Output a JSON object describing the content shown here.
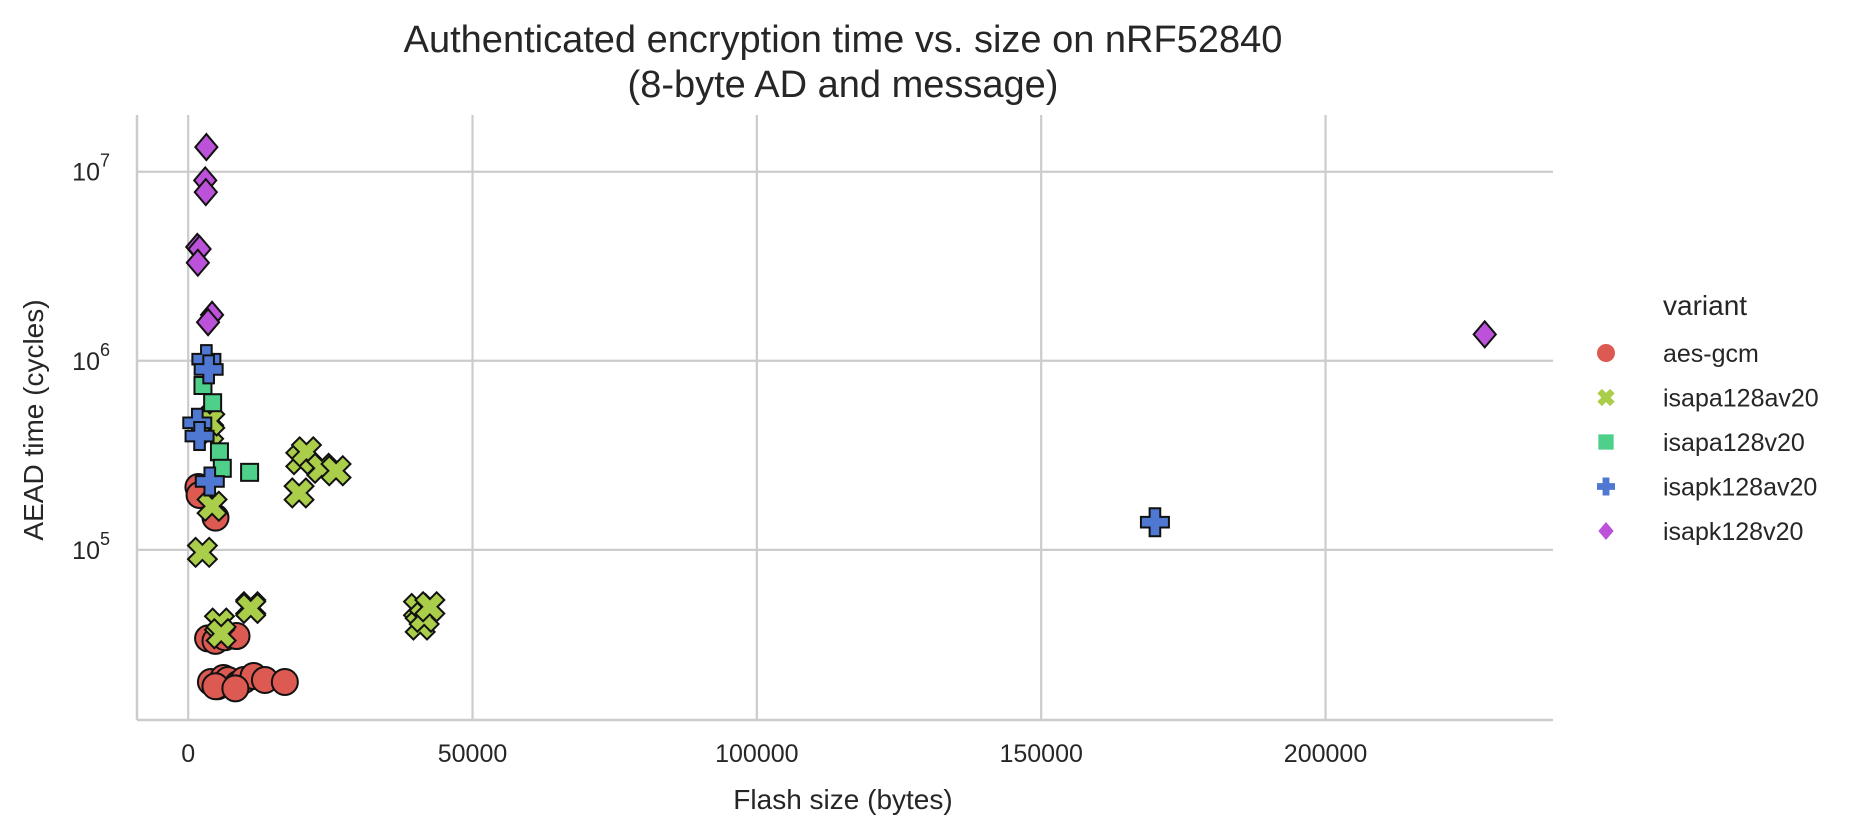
{
  "chart_data": {
    "type": "scatter",
    "title": "Authenticated encryption time vs. size on nRF52840",
    "subtitle": "(8-byte AD and message)",
    "xlabel": "Flash size (bytes)",
    "ylabel": "AEAD time (cycles)",
    "xlim": [
      -9000,
      240000
    ],
    "ylim_log10": [
      4.1,
      7.3
    ],
    "y_scale": "log",
    "grid": true,
    "x_ticks": [
      {
        "value": 0,
        "label": "0"
      },
      {
        "value": 50000,
        "label": "50000"
      },
      {
        "value": 100000,
        "label": "100000"
      },
      {
        "value": 150000,
        "label": "150000"
      },
      {
        "value": 200000,
        "label": "200000"
      }
    ],
    "y_ticks": [
      {
        "value": 100000,
        "base": "10",
        "exp": "5"
      },
      {
        "value": 1000000,
        "base": "10",
        "exp": "6"
      },
      {
        "value": 10000000,
        "base": "10",
        "exp": "7"
      }
    ],
    "legend": {
      "title": "variant",
      "placement": "right"
    },
    "series": [
      {
        "name": "aes-gcm",
        "marker": "circle",
        "color": "#dd5a52",
        "points": [
          [
            1800,
            215000
          ],
          [
            2000,
            195000
          ],
          [
            4800,
            148000
          ],
          [
            3500,
            34000
          ],
          [
            4800,
            33000
          ],
          [
            6500,
            34500
          ],
          [
            8500,
            35000
          ],
          [
            4000,
            20000
          ],
          [
            5200,
            19000
          ],
          [
            6200,
            21000
          ],
          [
            7000,
            20500
          ],
          [
            8800,
            19500
          ],
          [
            9800,
            20500
          ],
          [
            11500,
            21500
          ],
          [
            13500,
            20500
          ],
          [
            17000,
            20000
          ],
          [
            4800,
            19000
          ],
          [
            8300,
            18500
          ]
        ]
      },
      {
        "name": "isapa128av20",
        "marker": "x",
        "color": "#aacd4a",
        "points": [
          [
            2500,
            97000
          ],
          [
            4200,
            170000
          ],
          [
            3600,
            420000
          ],
          [
            3800,
            480000
          ],
          [
            5500,
            41000
          ],
          [
            5800,
            36000
          ],
          [
            11000,
            50000
          ],
          [
            11000,
            49000
          ],
          [
            19500,
            200000
          ],
          [
            19800,
            300000
          ],
          [
            20800,
            330000
          ],
          [
            23500,
            270000
          ],
          [
            26000,
            262000
          ],
          [
            40500,
            49000
          ],
          [
            40800,
            40000
          ],
          [
            41500,
            44000
          ],
          [
            42500,
            50000
          ]
        ]
      },
      {
        "name": "isapa128v20",
        "marker": "square",
        "color": "#4fd08a",
        "points": [
          [
            2600,
            740000
          ],
          [
            4300,
            600000
          ],
          [
            5500,
            330000
          ],
          [
            6000,
            270000
          ],
          [
            10800,
            257000
          ]
        ]
      },
      {
        "name": "isapk128av20",
        "marker": "plus",
        "color": "#4f78d2",
        "points": [
          [
            1600,
            470000
          ],
          [
            2000,
            400000
          ],
          [
            3200,
            1020000
          ],
          [
            3600,
            900000
          ],
          [
            3800,
            230000
          ],
          [
            170000,
            140000
          ]
        ]
      },
      {
        "name": "isapk128v20",
        "marker": "diamond",
        "color": "#bb52d9",
        "points": [
          [
            3200,
            13500000
          ],
          [
            3000,
            9000000
          ],
          [
            3100,
            7800000
          ],
          [
            1600,
            4000000
          ],
          [
            2000,
            3900000
          ],
          [
            1700,
            3300000
          ],
          [
            4200,
            1750000
          ],
          [
            3500,
            1600000
          ],
          [
            228000,
            1380000
          ]
        ]
      }
    ]
  }
}
